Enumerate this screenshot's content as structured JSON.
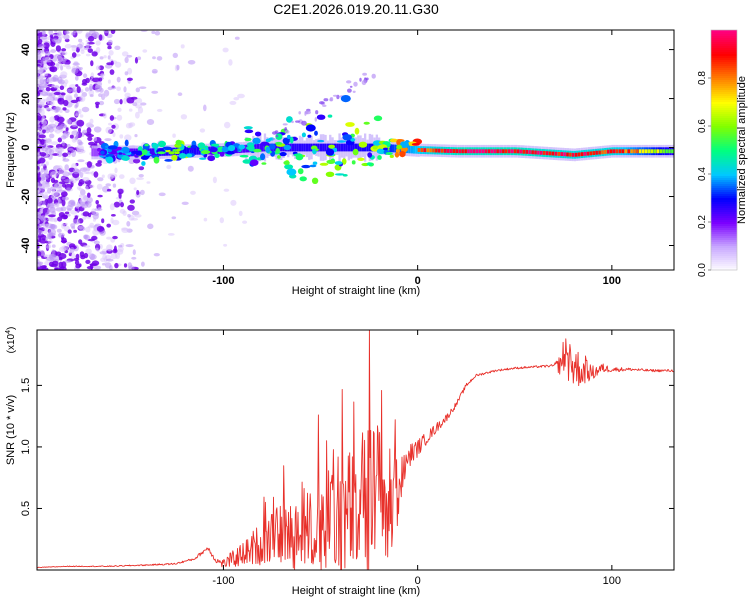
{
  "chart_data": [
    {
      "type": "heatmap",
      "title": "C2E1.2026.019.20.11.G30",
      "xlabel": "Height of straight line (km)",
      "ylabel": "Frequency (Hz)",
      "xlim": [
        -196,
        132
      ],
      "ylim": [
        -50,
        48
      ],
      "x_ticks": [
        -100,
        0,
        100
      ],
      "x_tick_labels": [
        "-100",
        "0",
        "100"
      ],
      "y_ticks": [
        -40,
        -20,
        0,
        20,
        40
      ],
      "y_tick_labels": [
        "-40",
        "-20",
        "0",
        "20",
        "40"
      ],
      "colorbar": {
        "label": "Normalized spectral amplitude",
        "range": [
          0,
          1
        ],
        "ticks": [
          0.0,
          0.2,
          0.4,
          0.6,
          0.8
        ],
        "tick_labels": [
          "0.0",
          "0.2",
          "0.4",
          "0.6",
          "0.8"
        ],
        "colors": [
          "#ffffff",
          "#c8a8ff",
          "#7b00ff",
          "#0000ff",
          "#00c8ff",
          "#00ff80",
          "#80ff00",
          "#ffff00",
          "#ff8000",
          "#ff0000",
          "#ff0080"
        ]
      },
      "ridge": [
        {
          "x": -165,
          "freq": -2,
          "amp": 0.35
        },
        {
          "x": -140,
          "freq": -2,
          "amp": 0.55
        },
        {
          "x": -120,
          "freq": -1.5,
          "amp": 0.65
        },
        {
          "x": -100,
          "freq": -1,
          "amp": 0.5
        },
        {
          "x": -80,
          "freq": 0,
          "amp": 0.55
        },
        {
          "x": -60,
          "freq": 0,
          "amp": 0.6
        },
        {
          "x": -40,
          "freq": 0,
          "amp": 0.6
        },
        {
          "x": -20,
          "freq": 0,
          "amp": 0.65
        },
        {
          "x": 0,
          "freq": -1,
          "amp": 0.9
        },
        {
          "x": 20,
          "freq": -1.5,
          "amp": 1.0
        },
        {
          "x": 50,
          "freq": -1.5,
          "amp": 1.0
        },
        {
          "x": 80,
          "freq": -3,
          "amp": 0.95
        },
        {
          "x": 100,
          "freq": -1.5,
          "amp": 0.95
        },
        {
          "x": 130,
          "freq": -1.5,
          "amp": 0.6
        }
      ],
      "features": [
        {
          "x": -37,
          "freq": 20,
          "amp": 0.35
        },
        {
          "x": -55,
          "freq": 8,
          "amp": 0.3
        },
        {
          "x": -65,
          "freq": -10,
          "amp": 0.4
        }
      ]
    },
    {
      "type": "line",
      "xlabel": "Height of straight line (km)",
      "ylabel": "SNR (10 * v/v)",
      "y_multiplier": "(x10",
      "y_multiplier_exp": "4",
      "y_multiplier_close": ")",
      "xlim": [
        -196,
        132
      ],
      "ylim": [
        0,
        1.95
      ],
      "x_ticks": [
        -100,
        0,
        100
      ],
      "x_tick_labels": [
        "-100",
        "0",
        "100"
      ],
      "y_ticks": [
        0.5,
        1.0,
        1.5
      ],
      "y_tick_labels": [
        "0.5",
        "1.0",
        "1.5"
      ],
      "color": "#e8302a",
      "series": [
        {
          "name": "SNR",
          "x": [
            -196,
            -180,
            -160,
            -140,
            -125,
            -115,
            -108,
            -104,
            -100,
            -95,
            -90,
            -85,
            -80,
            -75,
            -70,
            -65,
            -60,
            -55,
            -50,
            -45,
            -40,
            -35,
            -30,
            -25,
            -20,
            -15,
            -12,
            -10,
            -8,
            -5,
            0,
            5,
            10,
            15,
            20,
            25,
            30,
            40,
            50,
            60,
            70,
            75,
            80,
            85,
            90,
            95,
            100,
            110,
            120,
            132
          ],
          "y": [
            0.02,
            0.03,
            0.03,
            0.04,
            0.05,
            0.09,
            0.18,
            0.08,
            0.05,
            0.09,
            0.13,
            0.18,
            0.22,
            0.26,
            0.3,
            0.28,
            0.3,
            0.33,
            0.36,
            0.38,
            0.42,
            0.45,
            0.5,
            0.52,
            0.55,
            0.5,
            0.52,
            0.65,
            0.78,
            0.92,
            0.99,
            1.08,
            1.16,
            1.24,
            1.35,
            1.5,
            1.58,
            1.62,
            1.64,
            1.65,
            1.66,
            1.67,
            1.66,
            1.62,
            1.6,
            1.64,
            1.63,
            1.63,
            1.62,
            1.62
          ],
          "noise": [
            0.002,
            0.003,
            0.004,
            0.005,
            0.007,
            0.01,
            0.02,
            0.02,
            0.04,
            0.07,
            0.1,
            0.14,
            0.18,
            0.2,
            0.25,
            0.28,
            0.3,
            0.34,
            0.38,
            0.45,
            0.5,
            0.55,
            0.6,
            0.7,
            0.7,
            0.55,
            0.4,
            0.25,
            0.15,
            0.1,
            0.07,
            0.05,
            0.04,
            0.03,
            0.02,
            0.015,
            0.01,
            0.008,
            0.008,
            0.008,
            0.01,
            0.12,
            0.2,
            0.12,
            0.06,
            0.04,
            0.02,
            0.012,
            0.01,
            0.01
          ]
        }
      ]
    }
  ]
}
